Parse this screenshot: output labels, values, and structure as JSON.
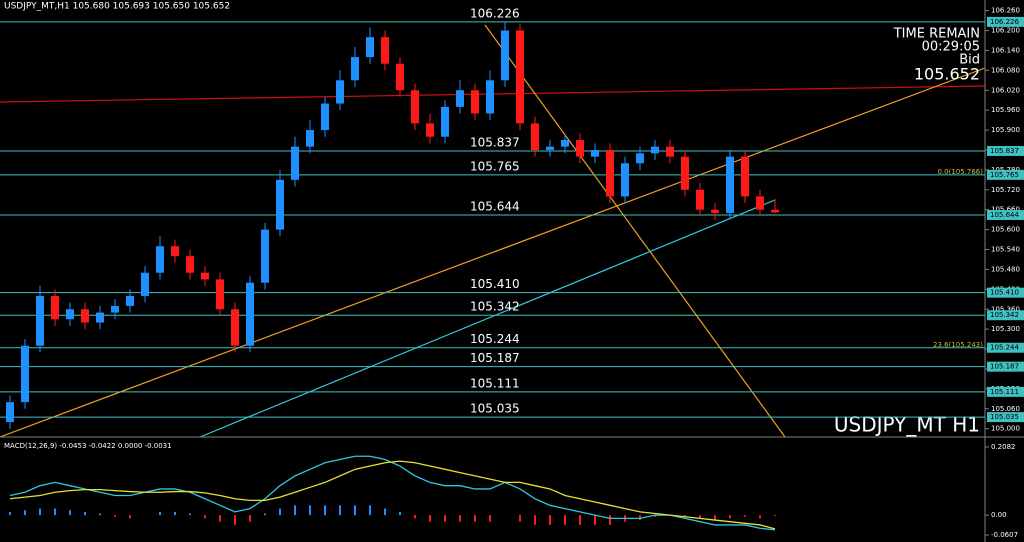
{
  "header": {
    "symbol_info": "USDJPY_MT,H1  105.680 105.693 105.650 105.652"
  },
  "info": {
    "time_label": "TIME REMAIN",
    "time": "00:29:05",
    "bid_label": "Bid",
    "bid": "105.652"
  },
  "watermark": "USDJPY_MT H1",
  "chart_data": [
    {
      "type": "candlestick",
      "up_color": "#1e90ff",
      "down_color": "#ff1a1a",
      "ylim": [
        104.975,
        106.292
      ],
      "yticks": [
        {
          "value": 106.26,
          "label": "106.260"
        },
        {
          "value": 106.2,
          "label": "106.200"
        },
        {
          "value": 106.14,
          "label": "106.140"
        },
        {
          "value": 106.08,
          "label": "106.080"
        },
        {
          "value": 106.02,
          "label": "106.020"
        },
        {
          "value": 105.96,
          "label": "105.960"
        },
        {
          "value": 105.9,
          "label": "105.900"
        },
        {
          "value": 105.84,
          "label": "105.840"
        },
        {
          "value": 105.78,
          "label": "105.780"
        },
        {
          "value": 105.72,
          "label": "105.720"
        },
        {
          "value": 105.66,
          "label": "105.660"
        },
        {
          "value": 105.6,
          "label": "105.600"
        },
        {
          "value": 105.54,
          "label": "105.540"
        },
        {
          "value": 105.48,
          "label": "105.480"
        },
        {
          "value": 105.42,
          "label": "105.420"
        },
        {
          "value": 105.36,
          "label": "105.360"
        },
        {
          "value": 105.3,
          "label": "105.300"
        },
        {
          "value": 105.24,
          "label": "105.240"
        },
        {
          "value": 105.18,
          "label": "105.180"
        },
        {
          "value": 105.12,
          "label": "105.120"
        },
        {
          "value": 105.06,
          "label": "105.060"
        },
        {
          "value": 105.0,
          "label": "105.000"
        }
      ],
      "open": [
        105.02,
        105.08,
        105.25,
        105.4,
        105.33,
        105.36,
        105.32,
        105.35,
        105.37,
        105.4,
        105.47,
        105.55,
        105.52,
        105.47,
        105.45,
        105.36,
        105.25,
        105.44,
        105.6,
        105.75,
        105.85,
        105.9,
        105.98,
        106.05,
        106.12,
        106.18,
        106.1,
        106.02,
        105.92,
        105.88,
        105.97,
        106.02,
        105.95,
        106.05,
        106.2,
        105.92,
        105.84,
        105.85,
        105.87,
        105.82,
        105.84,
        105.7,
        105.8,
        105.83,
        105.85,
        105.82,
        105.72,
        105.66,
        105.65,
        105.82,
        105.7,
        105.66
      ],
      "high": [
        105.1,
        105.27,
        105.43,
        105.42,
        105.38,
        105.38,
        105.37,
        105.39,
        105.42,
        105.49,
        105.58,
        105.57,
        105.54,
        105.49,
        105.47,
        105.38,
        105.46,
        105.62,
        105.78,
        105.88,
        105.93,
        106.0,
        106.08,
        106.15,
        106.21,
        106.2,
        106.12,
        106.04,
        105.95,
        105.99,
        106.05,
        106.04,
        106.08,
        106.226,
        106.22,
        105.94,
        105.87,
        105.89,
        105.89,
        105.86,
        105.86,
        105.82,
        105.85,
        105.87,
        105.87,
        105.84,
        105.74,
        105.68,
        105.84,
        105.84,
        105.72,
        105.693
      ],
      "low": [
        105.0,
        105.06,
        105.23,
        105.31,
        105.31,
        105.3,
        105.3,
        105.33,
        105.35,
        105.38,
        105.45,
        105.5,
        105.45,
        105.43,
        105.34,
        105.23,
        105.23,
        105.42,
        105.58,
        105.73,
        105.83,
        105.88,
        105.96,
        106.03,
        106.1,
        106.08,
        106.0,
        105.9,
        105.86,
        105.86,
        105.95,
        105.93,
        105.93,
        106.03,
        105.9,
        105.82,
        105.82,
        105.83,
        105.8,
        105.8,
        105.68,
        105.68,
        105.78,
        105.81,
        105.8,
        105.7,
        105.64,
        105.63,
        105.63,
        105.68,
        105.644,
        105.65
      ],
      "close": [
        105.08,
        105.25,
        105.4,
        105.33,
        105.36,
        105.32,
        105.35,
        105.37,
        105.4,
        105.47,
        105.55,
        105.52,
        105.47,
        105.45,
        105.36,
        105.25,
        105.44,
        105.6,
        105.75,
        105.85,
        105.9,
        105.98,
        106.05,
        106.12,
        106.18,
        106.1,
        106.02,
        105.92,
        105.88,
        105.97,
        106.02,
        105.95,
        106.05,
        106.2,
        105.92,
        105.84,
        105.85,
        105.87,
        105.82,
        105.84,
        105.7,
        105.8,
        105.83,
        105.85,
        105.82,
        105.72,
        105.66,
        105.65,
        105.82,
        105.7,
        105.66,
        105.652
      ],
      "level_color": "#40c0c0",
      "levels": [
        {
          "value": 106.226,
          "label": "106.226"
        },
        {
          "value": 105.837,
          "label": "105.837"
        },
        {
          "value": 105.765,
          "label": "105.765"
        },
        {
          "value": 105.644,
          "label": "105.644"
        },
        {
          "value": 105.41,
          "label": "105.410"
        },
        {
          "value": 105.342,
          "label": "105.342"
        },
        {
          "value": 105.244,
          "label": "105.244"
        },
        {
          "value": 105.187,
          "label": "105.187"
        },
        {
          "value": 105.111,
          "label": "105.111"
        },
        {
          "value": 105.035,
          "label": "105.035"
        }
      ],
      "annotations": [
        "0.0(105.766)",
        "23.6(105.243)"
      ]
    },
    {
      "type": "macd",
      "label": "MACD(12,26,9) -0.0453 -0.0422 0.0000 -0.0031",
      "ylim": [
        -0.0607,
        0.2082
      ],
      "yticks": [
        0.2082,
        {
          "value": 0,
          "label": "0.00"
        },
        -0.0607
      ],
      "histogram": {
        "up_color": "#1e90ff",
        "down_color": "#ff1a1a",
        "values": [
          0.01,
          0.015,
          0.02,
          0.02,
          0.015,
          0.01,
          0.005,
          -0.005,
          -0.01,
          0.0,
          0.01,
          0.01,
          0.005,
          -0.01,
          -0.02,
          -0.03,
          -0.02,
          0.005,
          0.02,
          0.03,
          0.03,
          0.03,
          0.03,
          0.03,
          0.03,
          0.02,
          0.01,
          -0.01,
          -0.02,
          -0.02,
          -0.02,
          -0.02,
          -0.02,
          0.0,
          -0.02,
          -0.03,
          -0.03,
          -0.03,
          -0.03,
          -0.03,
          -0.03,
          -0.02,
          -0.015,
          -0.005,
          0.0,
          -0.005,
          -0.01,
          -0.015,
          -0.01,
          -0.005,
          -0.01,
          -0.003
        ]
      },
      "series": [
        {
          "color": "#30c8e0",
          "values": [
            0.06,
            0.07,
            0.09,
            0.1,
            0.09,
            0.08,
            0.07,
            0.06,
            0.06,
            0.07,
            0.08,
            0.08,
            0.07,
            0.05,
            0.03,
            0.01,
            0.02,
            0.05,
            0.09,
            0.12,
            0.14,
            0.16,
            0.17,
            0.18,
            0.18,
            0.17,
            0.15,
            0.12,
            0.1,
            0.09,
            0.09,
            0.08,
            0.08,
            0.1,
            0.08,
            0.05,
            0.03,
            0.02,
            0.01,
            0.0,
            -0.01,
            -0.01,
            -0.01,
            0.0,
            0.0,
            -0.01,
            -0.02,
            -0.03,
            -0.03,
            -0.03,
            -0.04,
            -0.045
          ]
        },
        {
          "color": "#e8e030",
          "values": [
            0.05,
            0.055,
            0.06,
            0.07,
            0.075,
            0.078,
            0.078,
            0.075,
            0.072,
            0.07,
            0.07,
            0.072,
            0.072,
            0.068,
            0.06,
            0.05,
            0.045,
            0.045,
            0.055,
            0.07,
            0.085,
            0.1,
            0.12,
            0.14,
            0.15,
            0.16,
            0.165,
            0.16,
            0.15,
            0.14,
            0.13,
            0.12,
            0.11,
            0.1,
            0.1,
            0.09,
            0.08,
            0.06,
            0.05,
            0.04,
            0.03,
            0.02,
            0.01,
            0.005,
            0.0,
            -0.005,
            -0.01,
            -0.015,
            -0.02,
            -0.025,
            -0.03,
            -0.042
          ]
        }
      ]
    }
  ]
}
